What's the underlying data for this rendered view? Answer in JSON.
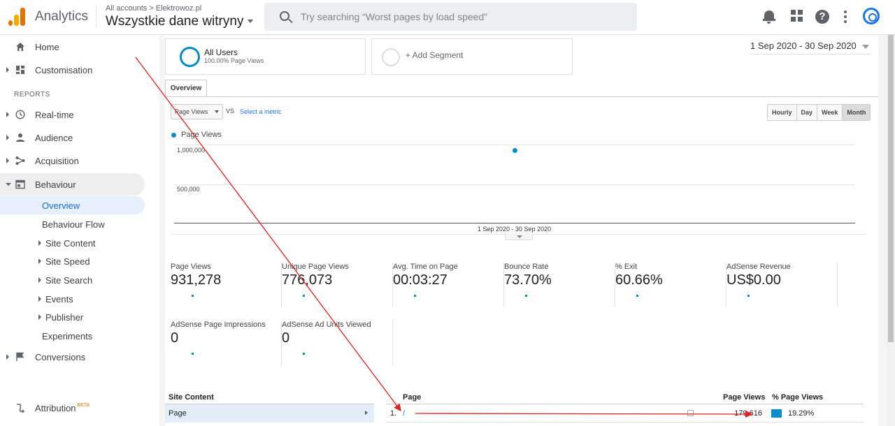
{
  "header": {
    "app_title": "Analytics",
    "account_crumb_root": "All accounts",
    "account_crumb_sep": ">",
    "account_name": "Elektrowoz.pl",
    "view_name": "Wszystkie dane witryny",
    "search_placeholder": "Try searching “Worst pages by load speed”",
    "help_glyph": "?"
  },
  "sidebar": {
    "home": "Home",
    "customisation": "Customisation",
    "reports_heading": "REPORTS",
    "realtime": "Real-time",
    "audience": "Audience",
    "acquisition": "Acquisition",
    "behaviour": "Behaviour",
    "behaviour_items": {
      "overview": "Overview",
      "flow": "Behaviour Flow",
      "site_content": "Site Content",
      "site_speed": "Site Speed",
      "site_search": "Site Search",
      "events": "Events",
      "publisher": "Publisher",
      "experiments": "Experiments"
    },
    "conversions": "Conversions",
    "attribution": "Attribution",
    "attribution_badge": "BETA"
  },
  "segments": {
    "seg1_title": "All Users",
    "seg1_sub": "100.00% Page Views",
    "add_segment": "+ Add Segment"
  },
  "date_range": "1 Sep 2020 - 30 Sep 2020",
  "tabs": {
    "overview": "Overview"
  },
  "controls": {
    "metric": "Page Views",
    "vs": "VS",
    "select_metric": "Select a metric",
    "granularity": [
      "Hourly",
      "Day",
      "Week",
      "Month"
    ],
    "selected_granularity": "Month"
  },
  "chart_data": {
    "type": "scatter",
    "series": [
      {
        "name": "Page Views",
        "x": [
          "1 Sep 2020 - 30 Sep 2020"
        ],
        "values": [
          931278
        ]
      }
    ],
    "y_ticks": [
      "1,000,000",
      "500,000"
    ],
    "x_ticks": [
      "1 Sep 2020 - 30 Sep 2020"
    ],
    "ylim": [
      0,
      1000000
    ],
    "grid": true,
    "legend": "top-left",
    "color": "#058dc7"
  },
  "stats": [
    {
      "name": "Page Views",
      "value": "931,278"
    },
    {
      "name": "Unique Page Views",
      "value": "776,073"
    },
    {
      "name": "Avg. Time on Page",
      "value": "00:03:27"
    },
    {
      "name": "Bounce Rate",
      "value": "73.70%"
    },
    {
      "name": "% Exit",
      "value": "60.66%"
    },
    {
      "name": "AdSense Revenue",
      "value": "US$0.00"
    },
    {
      "name": "AdSense Page Impressions",
      "value": "0"
    },
    {
      "name": "AdSense Ad Units Viewed",
      "value": "0"
    }
  ],
  "table": {
    "left_header": "Site Content",
    "left_row": "Page",
    "headers": [
      "Page",
      "Page Views",
      "% Page Views"
    ],
    "rows": [
      {
        "index": "1.",
        "page": "/",
        "views": "179,616",
        "share_pct": 19.29,
        "share": "19.29%"
      }
    ]
  },
  "colors": {
    "accent": "#058dc7",
    "annotation": "#e0201b"
  }
}
